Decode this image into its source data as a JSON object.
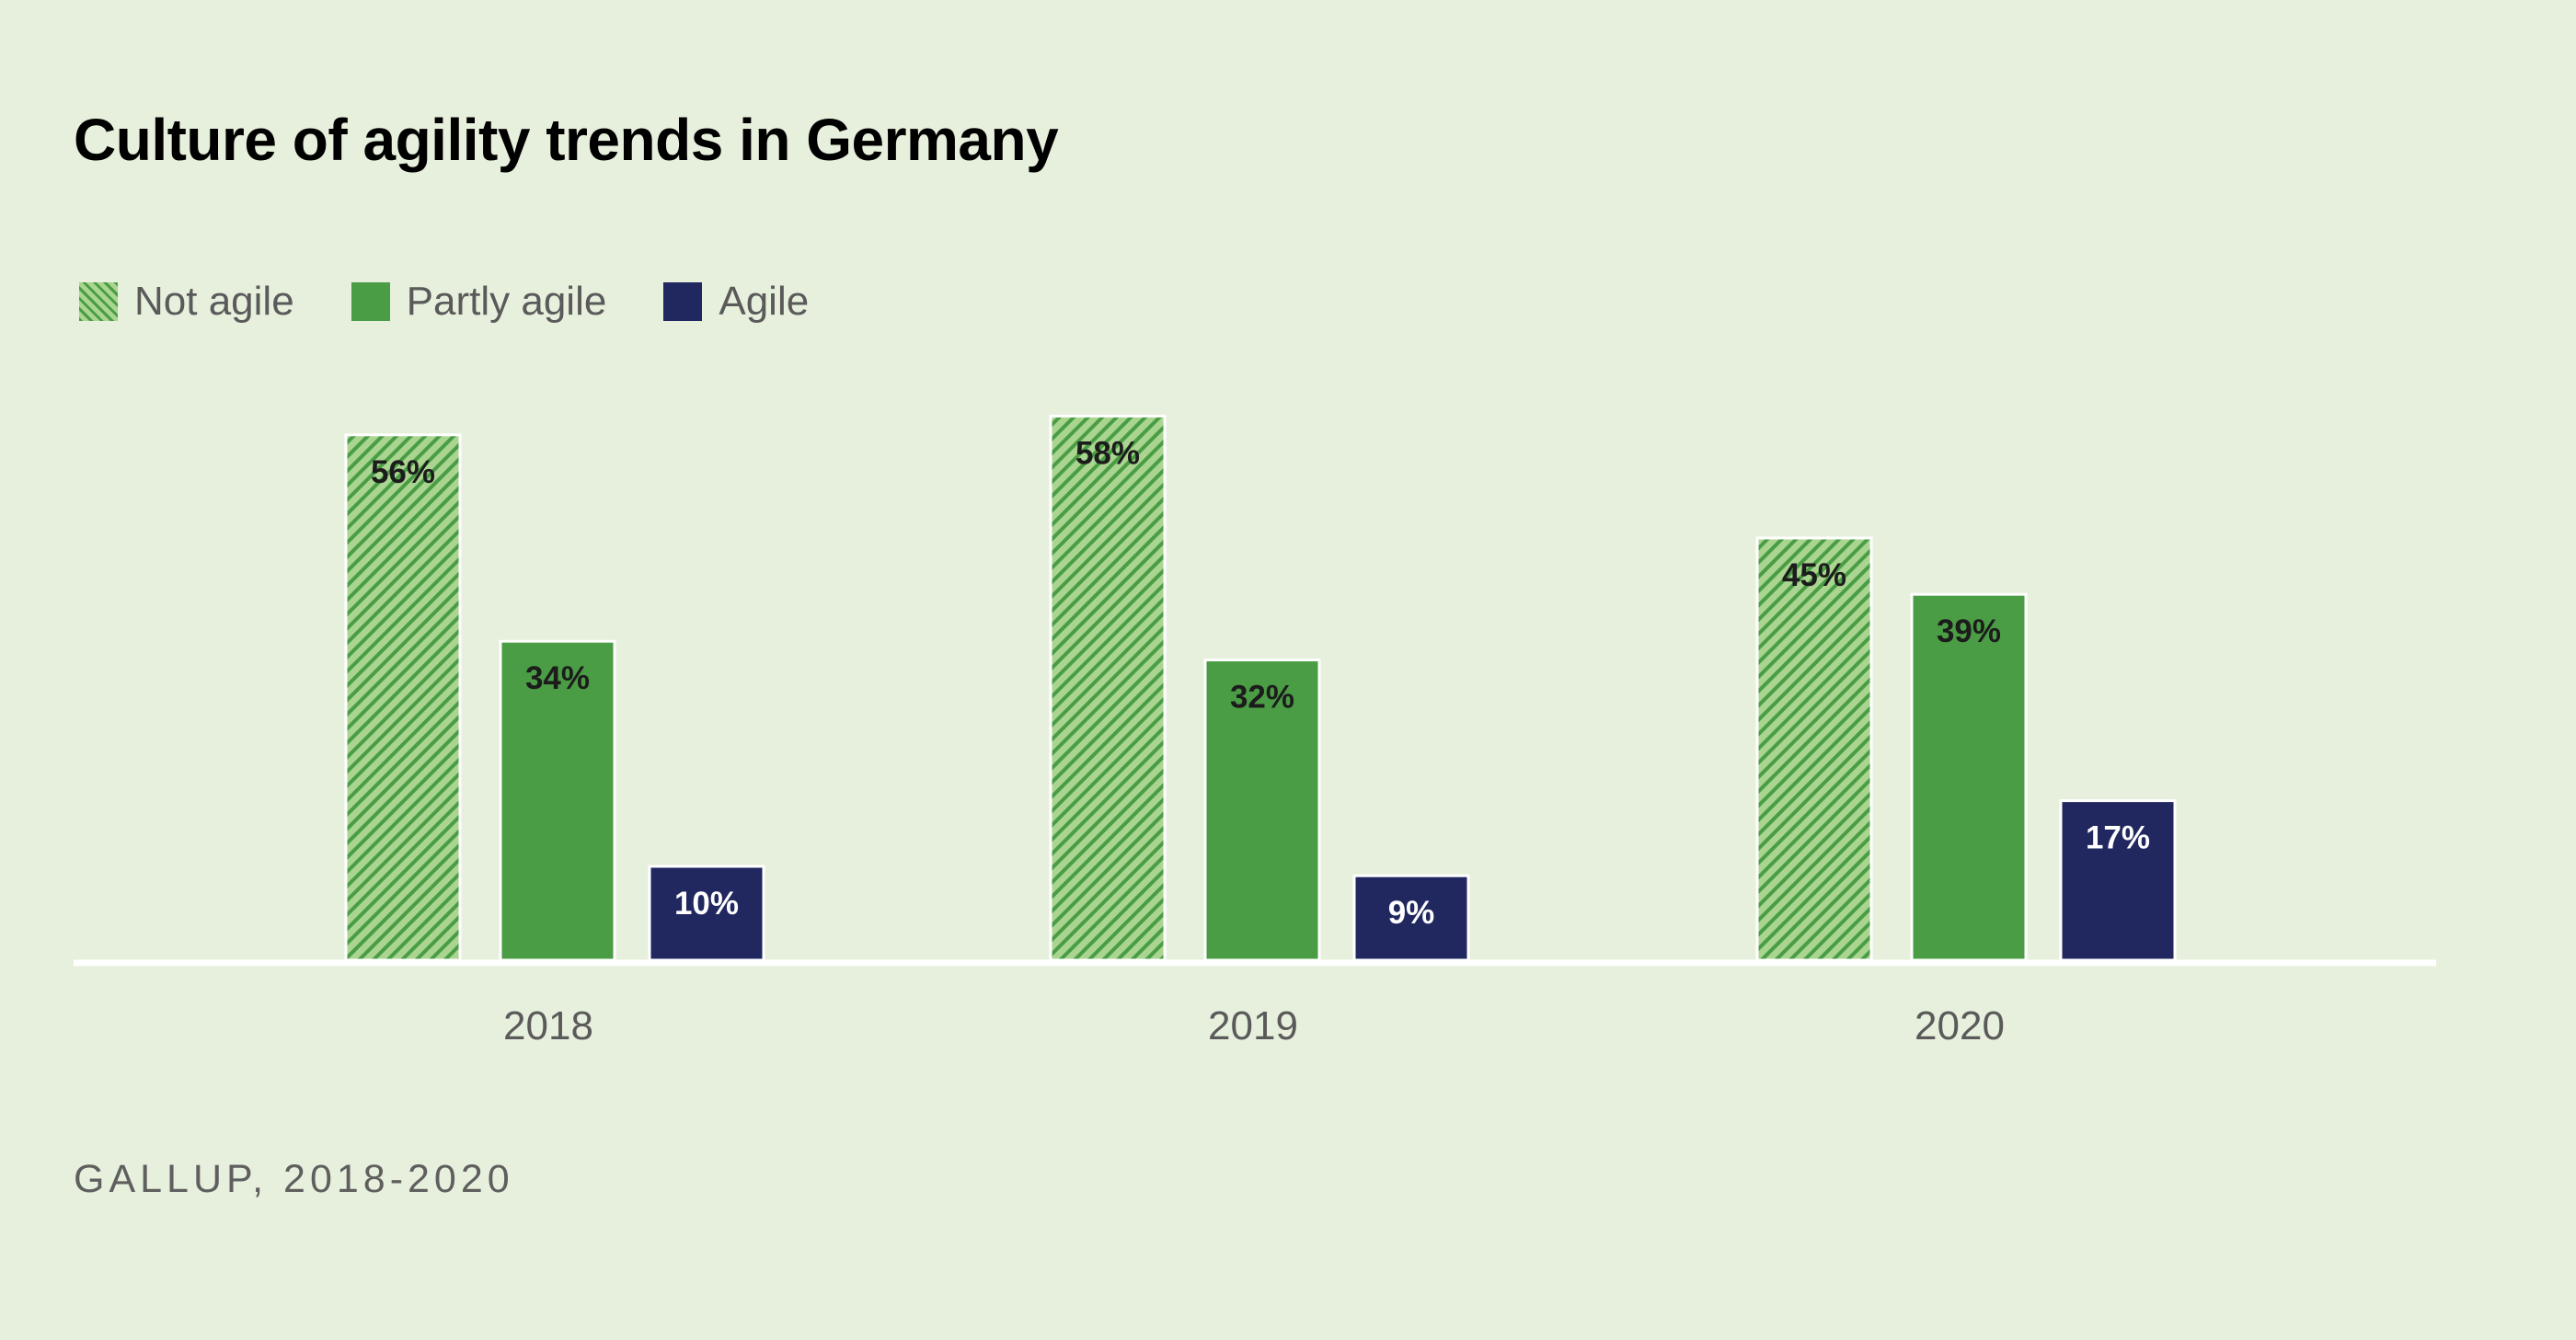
{
  "chart_data": {
    "type": "bar",
    "title": "Culture of agility trends in Germany",
    "categories": [
      "2018",
      "2019",
      "2020"
    ],
    "series": [
      {
        "name": "Not agile",
        "values": [
          56,
          58,
          45
        ],
        "labels": [
          "56%",
          "58%",
          "45%"
        ],
        "color": "#4a9d44",
        "light_color": "#a9d590",
        "pattern": "hatched",
        "label_color": "#1c1c1c"
      },
      {
        "name": "Partly agile",
        "values": [
          34,
          32,
          39
        ],
        "labels": [
          "34%",
          "32%",
          "39%"
        ],
        "color": "#4a9d44",
        "pattern": "solid",
        "label_color": "#1c1c1c"
      },
      {
        "name": "Agile",
        "values": [
          10,
          9,
          17
        ],
        "labels": [
          "10%",
          "9%",
          "17%"
        ],
        "color": "#20285f",
        "pattern": "solid",
        "label_color": "#ffffff"
      }
    ],
    "ylim": [
      0,
      60
    ],
    "grid": false,
    "legend": "top-left",
    "source": "GALLUP, 2018-2020"
  }
}
